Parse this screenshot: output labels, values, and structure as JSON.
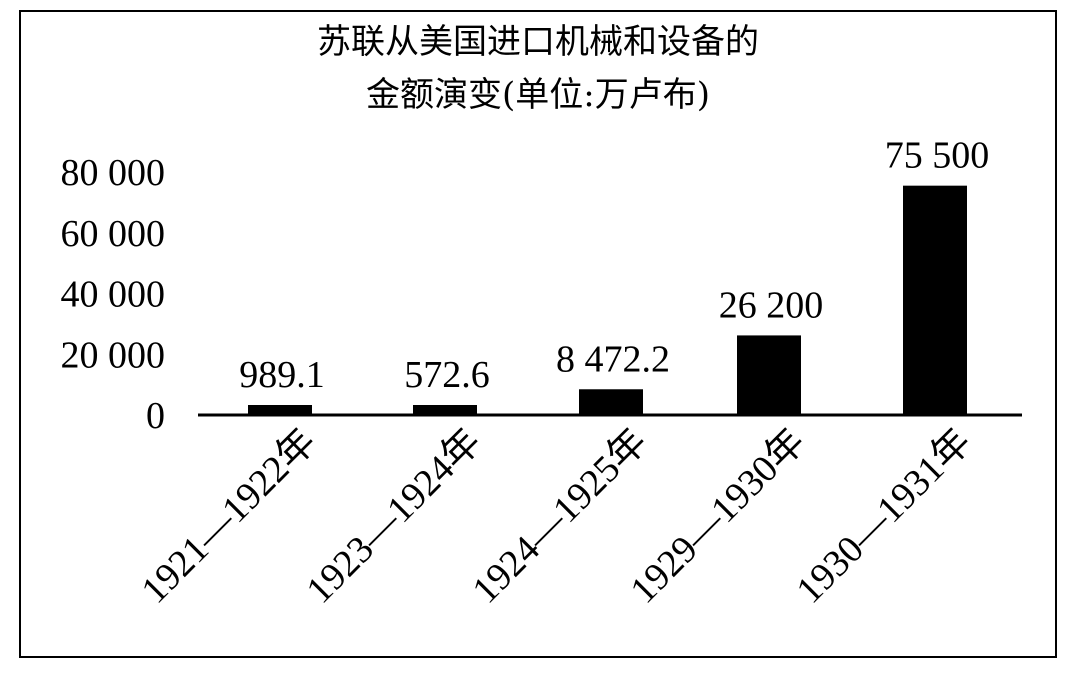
{
  "chart_data": {
    "type": "bar",
    "title": "苏联从美国进口机械和设备的",
    "subtitle": "金额演变(单位:万卢布)",
    "categories": [
      "1921—1922年",
      "1923—1924年",
      "1924—1925年",
      "1929—1930年",
      "1930—1931年"
    ],
    "values": [
      989.1,
      572.6,
      8472.2,
      26200,
      75500
    ],
    "value_labels": [
      "989.1",
      "572.6",
      "8 472.2",
      "26 200",
      "75 500"
    ],
    "yticks": [
      0,
      20000,
      40000,
      60000,
      80000
    ],
    "ytick_labels": [
      "0",
      "20 000",
      "40 000",
      "60 000",
      "80 000"
    ],
    "ylim": [
      0,
      80000
    ],
    "xlabel": "",
    "ylabel": "",
    "grid": false,
    "bar_color": "#000000"
  }
}
